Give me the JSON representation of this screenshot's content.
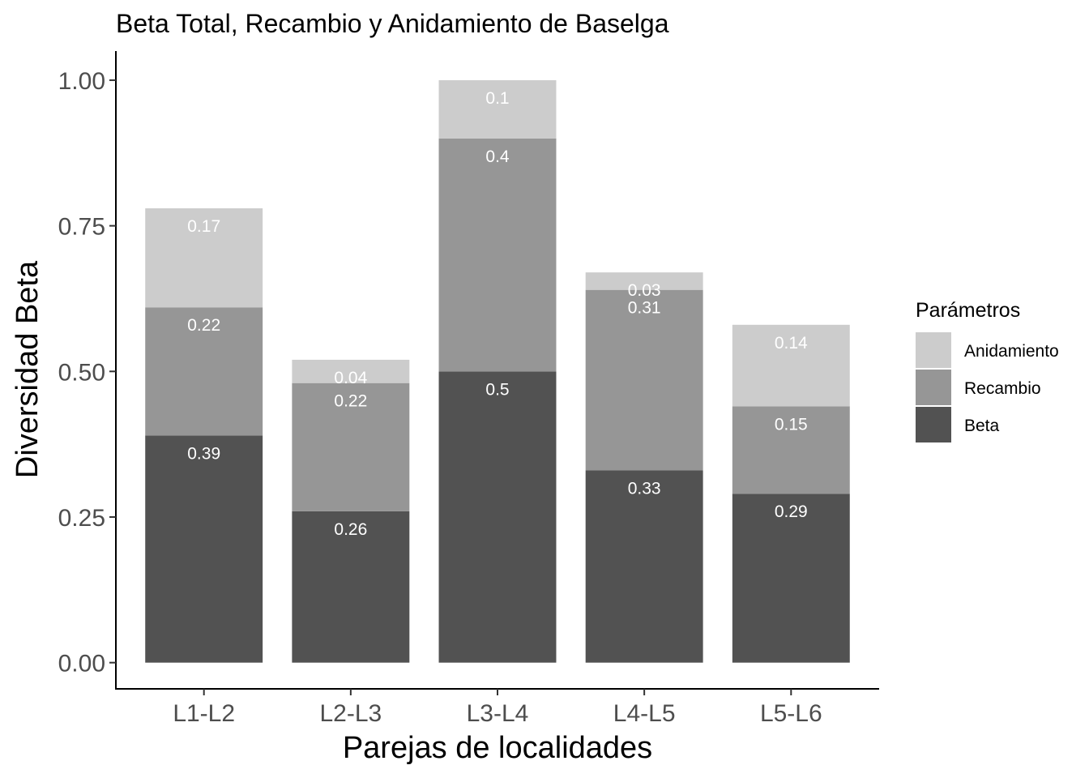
{
  "chart_data": {
    "type": "bar",
    "stacked": true,
    "title": "Beta Total, Recambio y Anidamiento de Baselga",
    "xlabel": "Parejas de localidades",
    "ylabel": "Diversidad Beta",
    "ylim": [
      -0.045,
      1.05
    ],
    "yticks": [
      "0.00",
      "0.25",
      "0.50",
      "0.75",
      "1.00"
    ],
    "ytick_values": [
      0,
      0.25,
      0.5,
      0.75,
      1.0
    ],
    "categories": [
      "L1-L2",
      "L2-L3",
      "L3-L4",
      "L4-L5",
      "L5-L6"
    ],
    "series": [
      {
        "name": "Beta",
        "color": "#525252",
        "values": [
          0.39,
          0.26,
          0.5,
          0.33,
          0.29
        ],
        "labels": [
          "0.39",
          "0.26",
          "0.5",
          "0.33",
          "0.29"
        ]
      },
      {
        "name": "Recambio",
        "color": "#969696",
        "values": [
          0.22,
          0.22,
          0.4,
          0.31,
          0.15
        ],
        "labels": [
          "0.22",
          "0.22",
          "0.4",
          "0.31",
          "0.15"
        ]
      },
      {
        "name": "Anidamiento",
        "color": "#cccccc",
        "values": [
          0.17,
          0.04,
          0.1,
          0.03,
          0.14
        ],
        "labels": [
          "0.17",
          "0.04",
          "0.1",
          "0.03",
          "0.14"
        ]
      }
    ],
    "legend": {
      "title": "Parámetros",
      "position": "right",
      "entries": [
        "Anidamiento",
        "Recambio",
        "Beta"
      ]
    },
    "grid": false
  }
}
